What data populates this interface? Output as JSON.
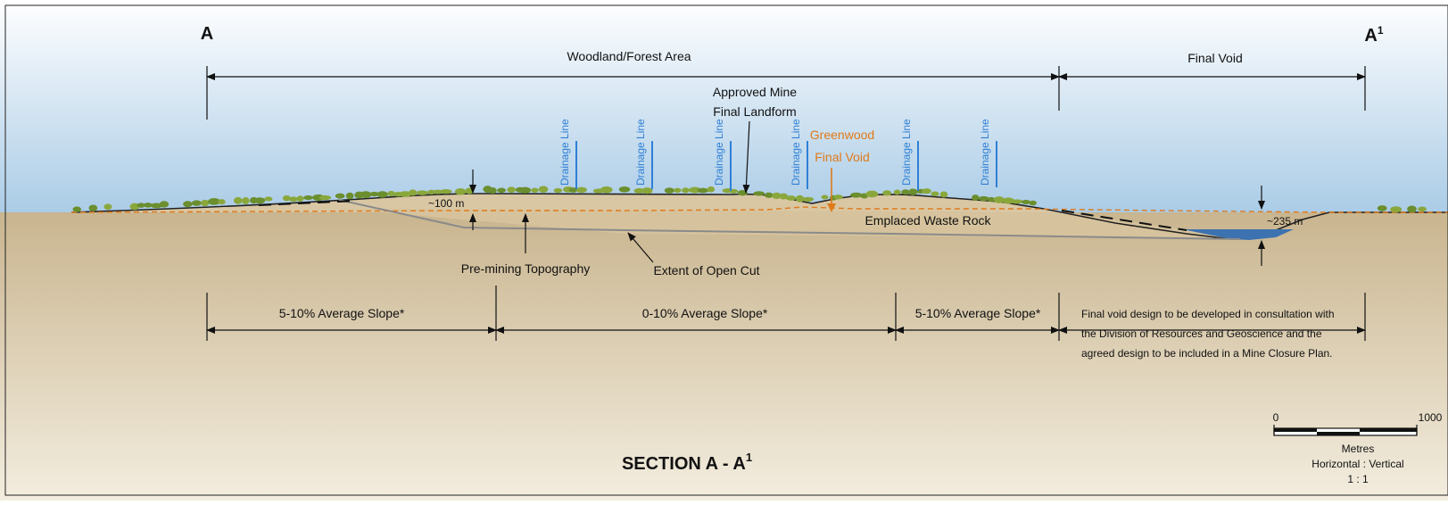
{
  "section_markers": {
    "left": "A",
    "right": "A",
    "right_superscript": "1"
  },
  "zones": {
    "woodland": "Woodland/Forest Area",
    "final_void": "Final Void"
  },
  "labels": {
    "approved_line1": "Approved Mine",
    "approved_line2": "Final Landform",
    "greenwood_line1": "Greenwood",
    "greenwood_line2": "Final Void",
    "emplaced": "Emplaced Waste Rock",
    "pre_mining": "Pre-mining Topography",
    "open_cut": "Extent of Open Cut",
    "depth_left": "~100 m",
    "depth_right": "~235 m"
  },
  "drainage_lines": [
    "Drainage Line",
    "Drainage Line",
    "Drainage Line",
    "Drainage Line",
    "Drainage Line",
    "Drainage Line"
  ],
  "slopes": [
    "5-10% Average Slope*",
    "0-10% Average Slope*",
    "5-10%  Average Slope*"
  ],
  "note_lines": [
    "Final void design to be developed in consultation with",
    "the Division of Resources and Geoscience and the",
    "agreed design to be included in a Mine Closure Plan."
  ],
  "title": {
    "main": "SECTION A - A",
    "superscript": "1"
  },
  "scale": {
    "tick_start": "0",
    "tick_end": "1000",
    "unit": "Metres",
    "ratio_label": "Horizontal : Vertical",
    "ratio": "1 : 1"
  },
  "colors": {
    "sky_top": "#a9cbe6",
    "ground_top": "#c9b58f",
    "ground_bottom": "#f1ead9",
    "waste_rock": "#d9c7a3",
    "water": "#3d72b0",
    "drainage": "#2f7fd6",
    "greenwood": "#e07a1a",
    "vegetation": "#6b8e2e"
  }
}
